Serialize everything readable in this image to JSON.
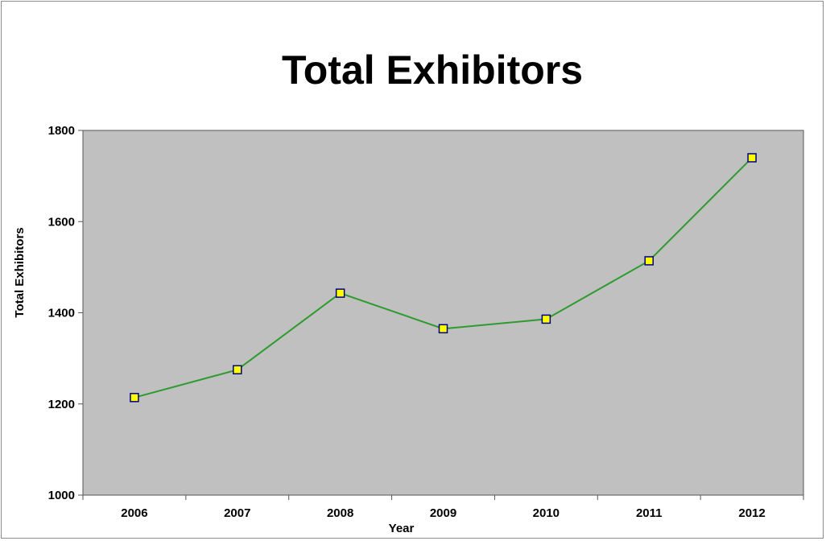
{
  "chart_data": {
    "type": "line",
    "title": "Total Exhibitors",
    "xlabel": "Year",
    "ylabel": "Total Exhibitors",
    "categories": [
      "2006",
      "2007",
      "2008",
      "2009",
      "2010",
      "2011",
      "2012"
    ],
    "series": [
      {
        "values": [
          1214,
          1275,
          1443,
          1365,
          1386,
          1514,
          1740
        ]
      }
    ],
    "ylim": [
      1000,
      1800
    ],
    "yticks": [
      1000,
      1200,
      1400,
      1600,
      1800
    ],
    "grid": false,
    "legend": "none",
    "colors": {
      "plot_background": "#c0c0c0",
      "line": "#2e9b2e",
      "marker_fill": "#ffff00",
      "marker_stroke": "#00007f",
      "axis": "#555555"
    }
  }
}
